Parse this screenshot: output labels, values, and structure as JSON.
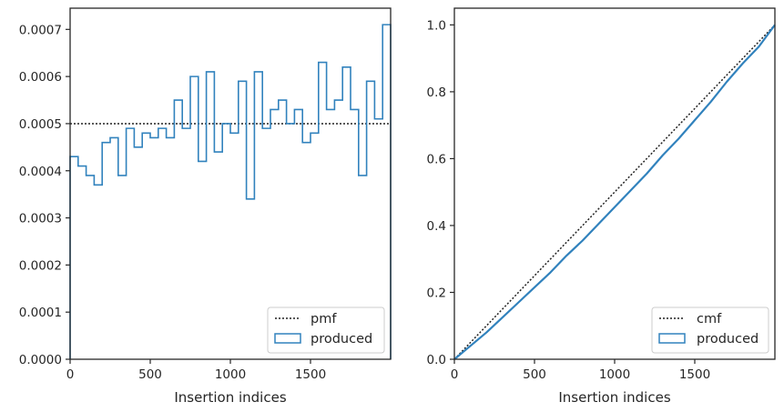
{
  "colors": {
    "series": "#3182bd",
    "reference": "#222222",
    "frame": "#262626"
  },
  "chart_data": [
    {
      "type": "histogram-step",
      "xlabel": "Insertion indices",
      "ylabel": "",
      "xlim": [
        0,
        2000
      ],
      "ylim": [
        0,
        0.000745
      ],
      "xticks": [
        0,
        500,
        1000,
        1500
      ],
      "xtick_labels": [
        "0",
        "500",
        "1000",
        "1500"
      ],
      "yticks": [
        0,
        0.0001,
        0.0002,
        0.0003,
        0.0004,
        0.0005,
        0.0006,
        0.0007
      ],
      "ytick_labels": [
        "0.0000",
        "0.0001",
        "0.0002",
        "0.0003",
        "0.0004",
        "0.0005",
        "0.0006",
        "0.0007"
      ],
      "bin_width": 50,
      "bin_start": 0,
      "series": [
        {
          "name": "produced",
          "values": [
            0.00043,
            0.00041,
            0.00039,
            0.00037,
            0.00046,
            0.00047,
            0.00039,
            0.00049,
            0.00045,
            0.00048,
            0.00047,
            0.00049,
            0.00047,
            0.00055,
            0.00049,
            0.0006,
            0.00042,
            0.00061,
            0.00044,
            0.0005,
            0.00048,
            0.00059,
            0.00034,
            0.00061,
            0.00049,
            0.00053,
            0.00055,
            0.0005,
            0.00053,
            0.00046,
            0.00048,
            0.00063,
            0.00053,
            0.00055,
            0.00062,
            0.00053,
            0.00039,
            0.00059,
            0.00051,
            0.00071
          ]
        }
      ],
      "reference": {
        "name": "pmf",
        "value": 0.0005
      },
      "legend": {
        "placement": "lower-right",
        "entries": [
          "pmf",
          "produced"
        ]
      }
    },
    {
      "type": "line",
      "xlabel": "Insertion indices",
      "ylabel": "",
      "xlim": [
        0,
        2000
      ],
      "ylim": [
        0,
        1.05
      ],
      "xticks": [
        0,
        500,
        1000,
        1500
      ],
      "xtick_labels": [
        "0",
        "500",
        "1000",
        "1500"
      ],
      "yticks": [
        0,
        0.2,
        0.4,
        0.6,
        0.8,
        1.0
      ],
      "ytick_labels": [
        "0.0",
        "0.2",
        "0.4",
        "0.6",
        "0.8",
        "1.0"
      ],
      "series": [
        {
          "name": "produced",
          "x": [
            0,
            100,
            200,
            300,
            400,
            500,
            600,
            700,
            800,
            900,
            1000,
            1100,
            1200,
            1300,
            1400,
            1500,
            1600,
            1700,
            1800,
            1900,
            2000
          ],
          "values": [
            0,
            0.04,
            0.08,
            0.125,
            0.17,
            0.215,
            0.26,
            0.31,
            0.355,
            0.405,
            0.455,
            0.505,
            0.555,
            0.61,
            0.66,
            0.715,
            0.77,
            0.83,
            0.885,
            0.935,
            1.0
          ]
        }
      ],
      "reference": {
        "name": "cmf",
        "x": [
          0,
          2000
        ],
        "values": [
          0,
          1.0
        ]
      },
      "legend": {
        "placement": "lower-right",
        "entries": [
          "cmf",
          "produced"
        ]
      }
    }
  ]
}
